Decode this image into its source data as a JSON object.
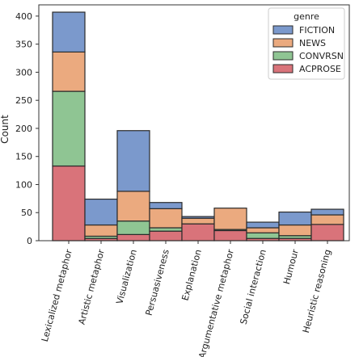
{
  "chart_data": {
    "type": "bar",
    "stacked": true,
    "xlabel": "",
    "ylabel": "Count",
    "ylim": [
      0,
      420
    ],
    "yticks": [
      0,
      50,
      100,
      150,
      200,
      250,
      300,
      350,
      400
    ],
    "categories": [
      "Lexicalized metaphor",
      "Artistic metaphor",
      "Visualization",
      "Persuasiveness",
      "Explanation",
      "Argumentative metaphor",
      "Social interaction",
      "Humour",
      "Heuristic reasoning"
    ],
    "legend": {
      "title": "genre",
      "position": "top-right"
    },
    "series": [
      {
        "name": "ACPROSE",
        "color": "#d9737a",
        "values": [
          133,
          4,
          11,
          17,
          30,
          18,
          4,
          4,
          29
        ]
      },
      {
        "name": "CONVRSN",
        "color": "#8fc593",
        "values": [
          133,
          4,
          24,
          6,
          0,
          2,
          10,
          5,
          0
        ]
      },
      {
        "name": "NEWS",
        "color": "#ebaa7f",
        "values": [
          70,
          20,
          53,
          34,
          10,
          38,
          9,
          19,
          17
        ]
      },
      {
        "name": "FICTION",
        "color": "#7b99cc",
        "values": [
          71,
          46,
          108,
          11,
          3,
          0,
          10,
          23,
          10
        ]
      }
    ],
    "legend_order": [
      "FICTION",
      "NEWS",
      "CONVRSN",
      "ACPROSE"
    ],
    "grid": false
  }
}
